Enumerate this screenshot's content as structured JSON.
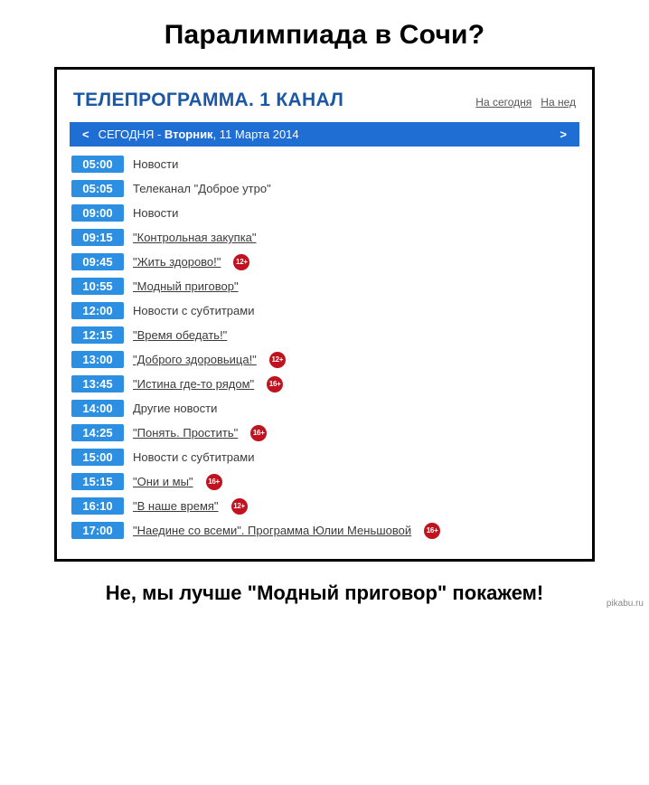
{
  "meme": {
    "title": "Паралимпиада в Сочи?",
    "caption": "Не, мы лучше \"Модный приговор\" покажем!",
    "watermark": "pikabu.ru"
  },
  "header": {
    "title": "ТЕЛЕПРОГРАММА. 1 КАНАЛ",
    "link_today": "На сегодня",
    "link_week": "На нед"
  },
  "dateBar": {
    "today": "СЕГОДНЯ - ",
    "weekday": "Вторник",
    "rest": ", 11 Марта 2014",
    "prev": "<",
    "next": ">"
  },
  "colors": {
    "headerTitle": "#1a57a6",
    "dateBarBg": "#1f6ed4",
    "timeChipBg": "#2d8fe2",
    "badgeBg": "#c1121f",
    "textMuted": "#3b3b3b",
    "linkMuted": "#555555",
    "frameBorder": "#000000",
    "pageBg": "#ffffff"
  },
  "schedule": [
    {
      "time": "05:00",
      "title": "Новости",
      "linked": false,
      "badge": null
    },
    {
      "time": "05:05",
      "title": "Телеканал \"Доброе утро\"",
      "linked": false,
      "badge": null
    },
    {
      "time": "09:00",
      "title": "Новости",
      "linked": false,
      "badge": null
    },
    {
      "time": "09:15",
      "title": "\"Контрольная закупка\"",
      "linked": true,
      "badge": null
    },
    {
      "time": "09:45",
      "title": "\"Жить здорово!\"",
      "linked": true,
      "badge": "12+"
    },
    {
      "time": "10:55",
      "title": "\"Модный приговор\"",
      "linked": true,
      "badge": null
    },
    {
      "time": "12:00",
      "title": "Новости с субтитрами",
      "linked": false,
      "badge": null
    },
    {
      "time": "12:15",
      "title": "\"Время обедать!\"",
      "linked": true,
      "badge": null
    },
    {
      "time": "13:00",
      "title": "\"Доброго здоровьица!\"",
      "linked": true,
      "badge": "12+"
    },
    {
      "time": "13:45",
      "title": "\"Истина где-то рядом\"",
      "linked": true,
      "badge": "16+"
    },
    {
      "time": "14:00",
      "title": "Другие новости",
      "linked": false,
      "badge": null
    },
    {
      "time": "14:25",
      "title": "\"Понять. Простить\"",
      "linked": true,
      "badge": "16+"
    },
    {
      "time": "15:00",
      "title": "Новости с субтитрами",
      "linked": false,
      "badge": null
    },
    {
      "time": "15:15",
      "title": "\"Они и мы\"",
      "linked": true,
      "badge": "16+"
    },
    {
      "time": "16:10",
      "title": "\"В наше время\"",
      "linked": true,
      "badge": "12+"
    },
    {
      "time": "17:00",
      "title": "\"Наедине со всеми\". Программа Юлии Меньшовой",
      "linked": true,
      "badge": "16+"
    }
  ]
}
